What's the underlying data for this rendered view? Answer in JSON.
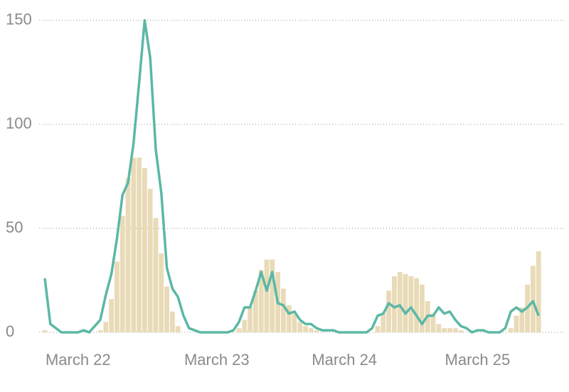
{
  "chart_data": {
    "type": "bar_line",
    "categories": [
      null,
      null,
      null,
      null,
      null,
      null,
      "March 22",
      null,
      null,
      null,
      null,
      null,
      null,
      null,
      null,
      null,
      null,
      null,
      null,
      null,
      null,
      null,
      null,
      null,
      null,
      null,
      null,
      null,
      null,
      null,
      null,
      "March 23",
      null,
      null,
      null,
      null,
      null,
      null,
      null,
      null,
      null,
      null,
      null,
      null,
      null,
      null,
      null,
      null,
      null,
      null,
      null,
      null,
      null,
      null,
      "March 24",
      null,
      null,
      null,
      null,
      null,
      null,
      null,
      null,
      null,
      null,
      null,
      null,
      null,
      null,
      null,
      null,
      null,
      null,
      null,
      null,
      null,
      null,
      null,
      "March 25",
      null,
      null,
      null,
      null,
      null,
      null,
      null,
      null,
      null,
      null,
      null
    ],
    "series": [
      {
        "type": "bar",
        "color": "#e9dbb8",
        "values": [
          1,
          0,
          0,
          0,
          0,
          0,
          0,
          0,
          0,
          0,
          1,
          5,
          16,
          34,
          56,
          74,
          84,
          84,
          79,
          69,
          55,
          38,
          22,
          10,
          3,
          0,
          0,
          0,
          0,
          0,
          0,
          0,
          0,
          0,
          0,
          2,
          6,
          12,
          20,
          30,
          35,
          35,
          29,
          21,
          13,
          9,
          5,
          3,
          2,
          1,
          0,
          0,
          0,
          0,
          0,
          0,
          0,
          0,
          0,
          0,
          3,
          9,
          20,
          27,
          29,
          28,
          27,
          26,
          23,
          15,
          9,
          4,
          2,
          2,
          2,
          1,
          0,
          0,
          0,
          0,
          0,
          0,
          0,
          0,
          2,
          8,
          12,
          23,
          32,
          39
        ]
      },
      {
        "type": "line",
        "color": "#5bb8a5",
        "values": [
          26,
          4,
          2,
          0,
          0,
          0,
          0,
          1,
          0,
          3,
          6,
          18,
          28,
          45,
          66,
          72,
          91,
          120,
          150,
          132,
          88,
          67,
          31,
          21,
          17,
          8,
          2,
          1,
          0,
          0,
          0,
          0,
          0,
          0,
          1,
          5,
          12,
          12,
          20,
          29,
          20,
          29,
          14,
          13,
          9,
          10,
          6,
          4,
          4,
          2,
          1,
          1,
          1,
          0,
          0,
          0,
          0,
          0,
          0,
          2,
          8,
          9,
          14,
          12,
          13,
          9,
          12,
          8,
          4,
          8,
          8,
          12,
          9,
          10,
          6,
          3,
          2,
          0,
          1,
          1,
          0,
          0,
          0,
          2,
          10,
          12,
          10,
          12,
          15,
          8
        ]
      }
    ],
    "ylim": [
      0,
      155
    ],
    "yticks": [
      0,
      50,
      100,
      150
    ],
    "grid": true
  }
}
